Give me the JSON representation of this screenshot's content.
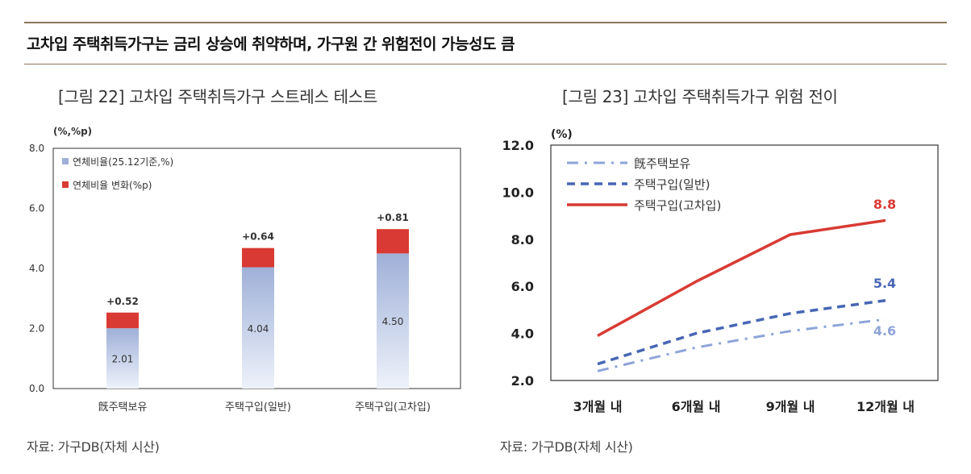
{
  "headline": "고차입 주택취득가구는 금리 상승에 취약하며, 가구원 간 위험전이 가능성도 큼",
  "figures": {
    "left_title": "[그림 22]  고차입 주택취득가구 스트레스 테스트",
    "right_title": "[그림 23] 고차입 주택취득가구 위험 전이",
    "left_source": "자료: 가구DB(자체 시산)",
    "right_source": "자료: 가구DB(자체 시산)"
  },
  "colors": {
    "rule": "#8c7559",
    "bar_base_top": "#9fb0d8",
    "bar_base_bottom": "#eef2fa",
    "bar_change": "#d93a33",
    "line_owned": "#8ea4d8",
    "line_general": "#4866b4",
    "line_highdebt": "#d93a33"
  },
  "chart_data": [
    {
      "type": "bar",
      "stacked": true,
      "unit_label": "(%,%p)",
      "categories": [
        "旣주택보유",
        "주택구입(일반)",
        "주택구입(고차입)"
      ],
      "series": [
        {
          "name": "연체비율(25.12기준,%)",
          "values": [
            2.01,
            4.04,
            4.5
          ],
          "labels": [
            "2.01",
            "4.04",
            "4.50"
          ]
        },
        {
          "name": "연체비율 변화(%p)",
          "values": [
            0.52,
            0.64,
            0.81
          ],
          "labels": [
            "+0.52",
            "+0.64",
            "+0.81"
          ]
        }
      ],
      "ylim": [
        0,
        8
      ],
      "yticks": [
        "0.0",
        "2.0",
        "4.0",
        "6.0",
        "8.0"
      ],
      "legend": "top-left"
    },
    {
      "type": "line",
      "unit_label": "(%)",
      "x": [
        "3개월 내",
        "6개월 내",
        "9개월 내",
        "12개월 내"
      ],
      "series": [
        {
          "name": "旣주택보유",
          "values": [
            2.4,
            3.4,
            4.1,
            4.6
          ],
          "style": "dash-dot",
          "end_label": "4.6"
        },
        {
          "name": "주택구입(일반)",
          "values": [
            2.7,
            4.0,
            4.85,
            5.4
          ],
          "style": "dash",
          "end_label": "5.4"
        },
        {
          "name": "주택구입(고차입)",
          "values": [
            3.9,
            6.2,
            8.2,
            8.8
          ],
          "style": "solid",
          "end_label": "8.8"
        }
      ],
      "ylim": [
        2,
        12
      ],
      "yticks": [
        "2.0",
        "4.0",
        "6.0",
        "8.0",
        "10.0",
        "12.0"
      ],
      "legend": "top-left"
    }
  ]
}
